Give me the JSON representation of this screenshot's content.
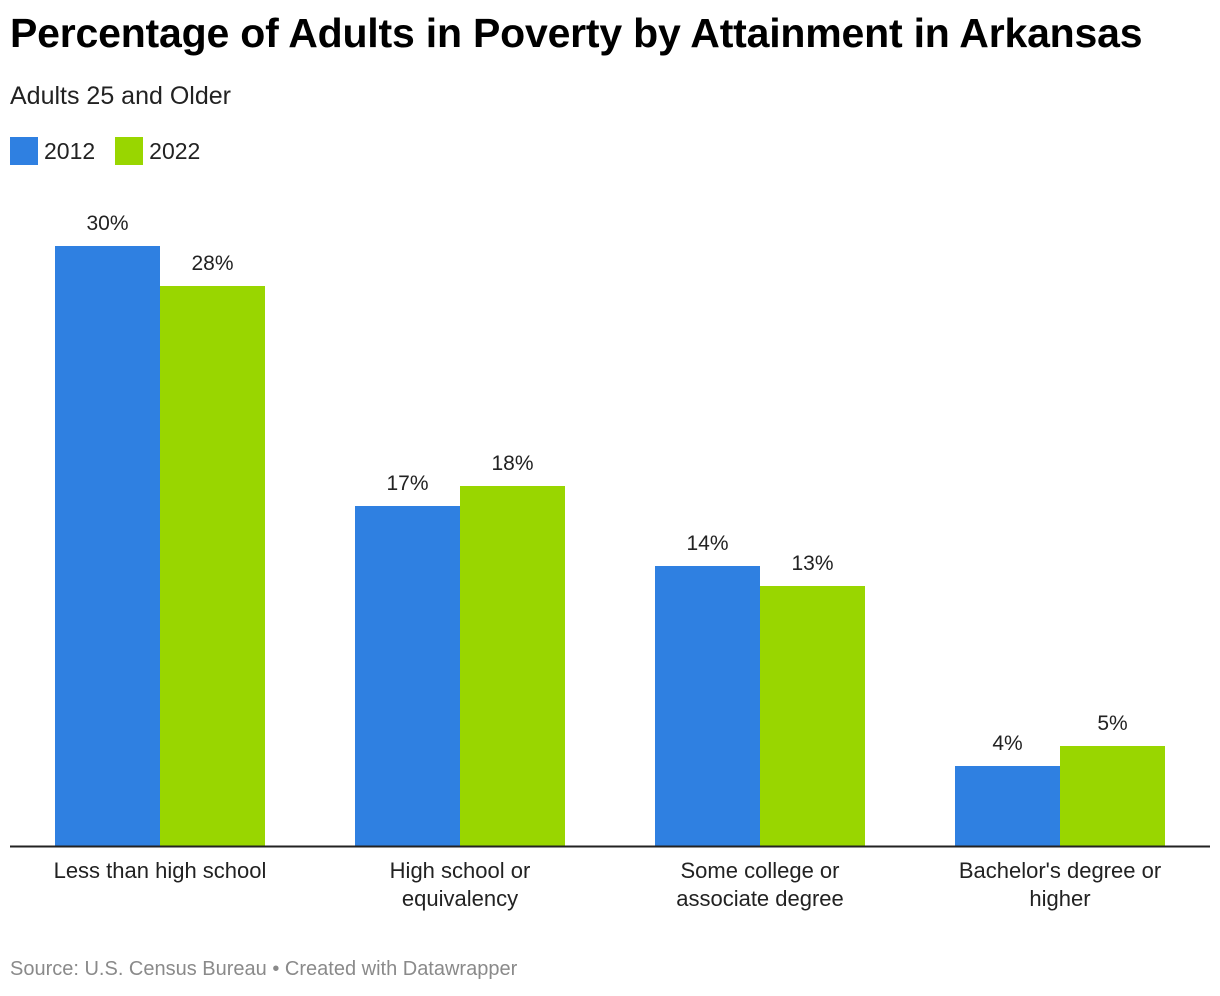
{
  "chart_data": {
    "type": "bar",
    "title": "Percentage of Adults in Poverty by Attainment in Arkansas",
    "subtitle": "Adults 25 and Older",
    "categories": [
      [
        "Less than high school"
      ],
      [
        "High school or",
        "equivalency"
      ],
      [
        "Some college or",
        "associate degree"
      ],
      [
        "Bachelor's degree or",
        "higher"
      ]
    ],
    "series": [
      {
        "name": "2012",
        "color": "#2f80e1",
        "values": [
          30,
          17,
          14,
          4
        ],
        "labels": [
          "30%",
          "17%",
          "14%",
          "4%"
        ]
      },
      {
        "name": "2022",
        "color": "#99d600",
        "values": [
          28,
          18,
          13,
          5
        ],
        "labels": [
          "28%",
          "18%",
          "13%",
          "5%"
        ]
      }
    ],
    "ylim": [
      0,
      30
    ],
    "grid": false,
    "legend_position": "top-left",
    "source": "Source: U.S. Census Bureau • Created with Datawrapper"
  }
}
